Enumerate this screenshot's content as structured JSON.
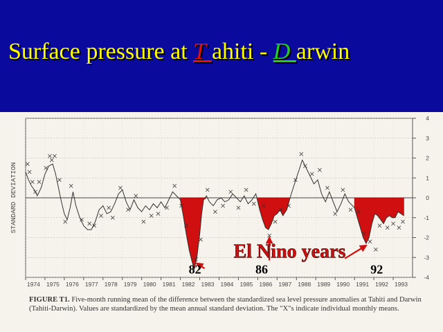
{
  "slide": {
    "title_prefix": "Surface pressure at ",
    "title_t": "T ",
    "title_ahiti": "ahiti - ",
    "title_d": "D ",
    "title_arwin": "arwin",
    "colors": {
      "background": "#0a0a9c",
      "title": "#ffff00",
      "t_letter": "#e01010",
      "d_letter": "#22cc22",
      "fill": "#d01010"
    }
  },
  "figure": {
    "caption_label": "FIGURE T1.",
    "caption_text": "Five-month running mean of the difference between the standardized sea level pressure anomalies at Tahiti and Darwin (Tahiti-Darwin). Values are standardized by the mean annual standard deviation. The \"X\"s indicate individual monthly means."
  },
  "chart_data": {
    "type": "line",
    "title": "",
    "xlabel": "",
    "ylabel": "STANDARD DEVIATION",
    "xlim": [
      1974,
      1994
    ],
    "ylim": [
      -4,
      4
    ],
    "x_tick_labels": [
      "1974",
      "1975",
      "1976",
      "1977",
      "1978",
      "1979",
      "1980",
      "1981",
      "1982",
      "1983",
      "1984",
      "1985",
      "1986",
      "1987",
      "1988",
      "1989",
      "1990",
      "1991",
      "1992",
      "1993"
    ],
    "y_ticks": [
      4,
      3,
      2,
      1,
      0,
      -1,
      -2,
      -3,
      -4
    ],
    "series": [
      {
        "type": "line",
        "points": [
          [
            1974.0,
            1.3
          ],
          [
            1974.15,
            0.9
          ],
          [
            1974.3,
            0.6
          ],
          [
            1974.45,
            0.4
          ],
          [
            1974.6,
            0.1
          ],
          [
            1974.8,
            0.5
          ],
          [
            1975.0,
            1.2
          ],
          [
            1975.2,
            1.6
          ],
          [
            1975.4,
            1.7
          ],
          [
            1975.55,
            1.2
          ],
          [
            1975.7,
            0.5
          ],
          [
            1975.85,
            -0.2
          ],
          [
            1976.0,
            -0.8
          ],
          [
            1976.15,
            -1.1
          ],
          [
            1976.3,
            -0.5
          ],
          [
            1976.45,
            0.3
          ],
          [
            1976.6,
            -0.4
          ],
          [
            1976.8,
            -1.0
          ],
          [
            1977.0,
            -1.4
          ],
          [
            1977.2,
            -1.6
          ],
          [
            1977.4,
            -1.6
          ],
          [
            1977.6,
            -1.2
          ],
          [
            1977.8,
            -0.6
          ],
          [
            1978.0,
            -0.4
          ],
          [
            1978.2,
            -0.8
          ],
          [
            1978.4,
            -0.7
          ],
          [
            1978.6,
            -0.3
          ],
          [
            1978.8,
            0.2
          ],
          [
            1979.0,
            0.4
          ],
          [
            1979.2,
            -0.2
          ],
          [
            1979.4,
            -0.6
          ],
          [
            1979.6,
            -0.1
          ],
          [
            1979.8,
            -0.5
          ],
          [
            1980.0,
            -0.7
          ],
          [
            1980.2,
            -0.4
          ],
          [
            1980.4,
            -0.6
          ],
          [
            1980.6,
            -0.3
          ],
          [
            1980.8,
            -0.5
          ],
          [
            1981.0,
            -0.2
          ],
          [
            1981.2,
            -0.5
          ],
          [
            1981.4,
            -0.1
          ],
          [
            1981.6,
            0.3
          ],
          [
            1981.8,
            0.1
          ],
          [
            1982.0,
            -0.1
          ],
          [
            1982.15,
            -0.9
          ],
          [
            1982.3,
            -1.8
          ],
          [
            1982.45,
            -2.6
          ],
          [
            1982.6,
            -3.2
          ],
          [
            1982.72,
            -3.6
          ],
          [
            1982.85,
            -3.0
          ],
          [
            1983.0,
            -1.8
          ],
          [
            1983.1,
            -0.8
          ],
          [
            1983.2,
            -0.1
          ],
          [
            1983.35,
            0.1
          ],
          [
            1983.5,
            -0.2
          ],
          [
            1983.7,
            -0.4
          ],
          [
            1983.9,
            -0.1
          ],
          [
            1984.1,
            0.0
          ],
          [
            1984.3,
            -0.2
          ],
          [
            1984.5,
            -0.1
          ],
          [
            1984.7,
            0.2
          ],
          [
            1984.9,
            0.0
          ],
          [
            1985.1,
            -0.2
          ],
          [
            1985.3,
            0.1
          ],
          [
            1985.5,
            -0.3
          ],
          [
            1985.7,
            -0.1
          ],
          [
            1985.9,
            0.2
          ],
          [
            1986.0,
            -0.2
          ],
          [
            1986.1,
            -0.6
          ],
          [
            1986.25,
            -1.1
          ],
          [
            1986.4,
            -1.5
          ],
          [
            1986.55,
            -1.6
          ],
          [
            1986.7,
            -1.3
          ],
          [
            1986.85,
            -0.9
          ],
          [
            1987.0,
            -0.8
          ],
          [
            1987.15,
            -0.6
          ],
          [
            1987.3,
            -0.9
          ],
          [
            1987.5,
            -0.6
          ],
          [
            1987.7,
            0.1
          ],
          [
            1987.9,
            0.7
          ],
          [
            1988.1,
            1.3
          ],
          [
            1988.3,
            1.9
          ],
          [
            1988.5,
            1.5
          ],
          [
            1988.7,
            1.1
          ],
          [
            1988.9,
            0.7
          ],
          [
            1989.1,
            0.9
          ],
          [
            1989.3,
            0.2
          ],
          [
            1989.5,
            -0.2
          ],
          [
            1989.7,
            0.3
          ],
          [
            1989.9,
            -0.2
          ],
          [
            1990.1,
            -0.7
          ],
          [
            1990.3,
            -0.3
          ],
          [
            1990.5,
            0.2
          ],
          [
            1990.7,
            -0.2
          ],
          [
            1990.9,
            -0.4
          ],
          [
            1991.0,
            -0.5
          ],
          [
            1991.15,
            -1.0
          ],
          [
            1991.3,
            -1.5
          ],
          [
            1991.45,
            -2.0
          ],
          [
            1991.6,
            -2.3
          ],
          [
            1991.75,
            -2.0
          ],
          [
            1991.9,
            -1.3
          ],
          [
            1992.05,
            -0.8
          ],
          [
            1992.2,
            -0.9
          ],
          [
            1992.35,
            -1.1
          ],
          [
            1992.5,
            -1.3
          ],
          [
            1992.65,
            -1.0
          ],
          [
            1992.8,
            -0.9
          ],
          [
            1992.95,
            -1.0
          ],
          [
            1993.1,
            -1.0
          ],
          [
            1993.25,
            -0.7
          ],
          [
            1993.4,
            -0.8
          ],
          [
            1993.55,
            -0.9
          ]
        ]
      },
      {
        "type": "scatter",
        "marker": "x",
        "points": [
          [
            1974.1,
            1.7
          ],
          [
            1974.2,
            1.3
          ],
          [
            1974.35,
            0.8
          ],
          [
            1974.5,
            0.3
          ],
          [
            1974.7,
            0.8
          ],
          [
            1975.05,
            1.5
          ],
          [
            1975.25,
            2.1
          ],
          [
            1975.35,
            1.9
          ],
          [
            1975.5,
            2.1
          ],
          [
            1975.75,
            0.9
          ],
          [
            1976.05,
            -1.2
          ],
          [
            1976.35,
            0.6
          ],
          [
            1976.9,
            -1.1
          ],
          [
            1977.3,
            -1.3
          ],
          [
            1977.55,
            -1.4
          ],
          [
            1977.9,
            -0.9
          ],
          [
            1978.3,
            -0.5
          ],
          [
            1978.5,
            -1.0
          ],
          [
            1978.9,
            0.5
          ],
          [
            1979.3,
            -0.6
          ],
          [
            1979.7,
            0.1
          ],
          [
            1980.1,
            -1.2
          ],
          [
            1980.5,
            -0.9
          ],
          [
            1980.85,
            -0.8
          ],
          [
            1981.3,
            -0.5
          ],
          [
            1981.7,
            0.6
          ],
          [
            1982.05,
            -0.4
          ],
          [
            1982.3,
            -1.4
          ],
          [
            1982.8,
            -3.1
          ],
          [
            1983.05,
            -2.1
          ],
          [
            1983.4,
            0.4
          ],
          [
            1983.8,
            -0.7
          ],
          [
            1984.2,
            -0.4
          ],
          [
            1984.6,
            0.3
          ],
          [
            1985.0,
            -0.5
          ],
          [
            1985.4,
            0.4
          ],
          [
            1985.8,
            -0.3
          ],
          [
            1986.3,
            -0.4
          ],
          [
            1986.6,
            -1.9
          ],
          [
            1986.9,
            -1.2
          ],
          [
            1987.2,
            -0.6
          ],
          [
            1987.6,
            -0.4
          ],
          [
            1987.95,
            0.9
          ],
          [
            1988.25,
            2.2
          ],
          [
            1988.45,
            1.6
          ],
          [
            1988.8,
            1.2
          ],
          [
            1989.2,
            1.4
          ],
          [
            1989.6,
            0.5
          ],
          [
            1990.0,
            -0.8
          ],
          [
            1990.4,
            0.4
          ],
          [
            1990.8,
            -0.6
          ],
          [
            1991.2,
            -0.7
          ],
          [
            1991.5,
            -1.8
          ],
          [
            1991.8,
            -2.2
          ],
          [
            1992.1,
            -2.6
          ],
          [
            1992.3,
            -1.4
          ],
          [
            1992.7,
            -1.5
          ],
          [
            1993.0,
            -1.3
          ],
          [
            1993.3,
            -1.5
          ],
          [
            1993.5,
            -1.2
          ]
        ]
      }
    ],
    "annotations": [
      {
        "text": "82",
        "x": 1982.75,
        "y": -3.8,
        "arrow_to": [
          1982.85,
          -3.3
        ]
      },
      {
        "text": "86",
        "x": 1986.2,
        "y": -3.8,
        "arrow_to": [
          1986.6,
          -2.0
        ]
      },
      {
        "text": "92",
        "x": 1992.15,
        "y": -3.8,
        "arrow_to": [
          1991.6,
          -2.4
        ]
      },
      {
        "text": "El Nino years",
        "x": 1987.65,
        "y": -3.0
      }
    ],
    "highlighted_periods": [
      {
        "label": "82",
        "x_range": [
          1982.0,
          1983.35
        ]
      },
      {
        "label": "86",
        "x_range": [
          1986.0,
          1987.65
        ]
      },
      {
        "label": "92",
        "x_range": [
          1991.0,
          1993.55
        ]
      }
    ]
  }
}
